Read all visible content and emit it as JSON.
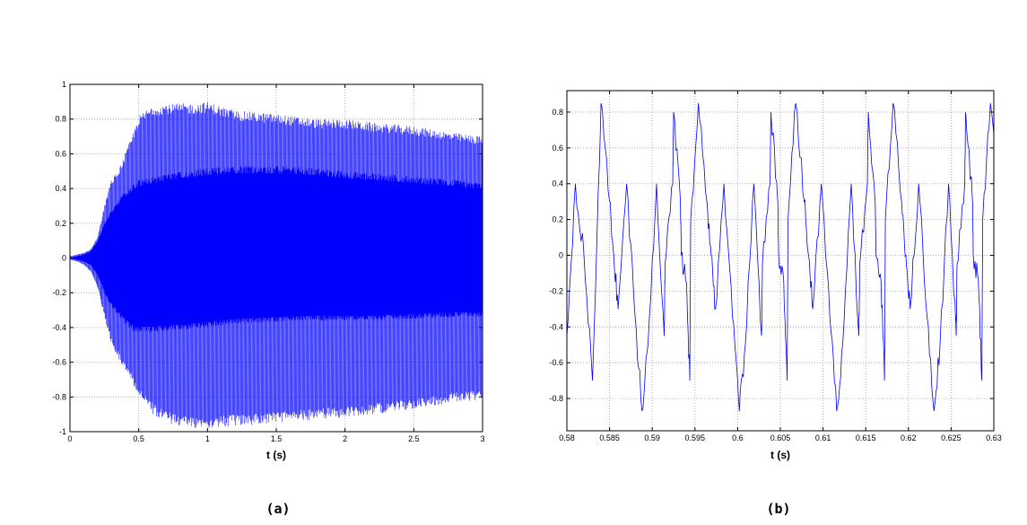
{
  "chart_data": [
    {
      "type": "line",
      "xlabel": "t (s)",
      "caption": "(a)",
      "xlim": [
        0,
        3
      ],
      "ylim": [
        -1,
        1
      ],
      "xticks": [
        0,
        0.5,
        1,
        1.5,
        2,
        2.5,
        3
      ],
      "xtick_labels": [
        "0",
        "0.5",
        "1",
        "1.5",
        "2",
        "2.5",
        "3"
      ],
      "yticks": [
        -1,
        -0.8,
        -0.6,
        -0.4,
        -0.2,
        0,
        0.2,
        0.4,
        0.6,
        0.8,
        1
      ],
      "ytick_labels": [
        "-1",
        "-0.8",
        "-0.6",
        "-0.4",
        "-0.2",
        "0",
        "0.2",
        "0.4",
        "0.6",
        "0.8",
        "1"
      ],
      "grid": true,
      "color": "#0000ff",
      "envelope": {
        "t": [
          0,
          0.05,
          0.1,
          0.15,
          0.2,
          0.25,
          0.3,
          0.35,
          0.4,
          0.45,
          0.5,
          0.6,
          0.7,
          0.8,
          0.9,
          1.0,
          1.2,
          1.5,
          1.8,
          2.0,
          2.2,
          2.5,
          2.8,
          3.0
        ],
        "peak_max": [
          0.01,
          0.02,
          0.03,
          0.05,
          0.12,
          0.3,
          0.45,
          0.5,
          0.6,
          0.7,
          0.82,
          0.88,
          0.89,
          0.89,
          0.89,
          0.9,
          0.85,
          0.83,
          0.8,
          0.8,
          0.78,
          0.76,
          0.72,
          0.7
        ],
        "peak_min": [
          -0.01,
          -0.02,
          -0.04,
          -0.08,
          -0.18,
          -0.35,
          -0.5,
          -0.58,
          -0.65,
          -0.72,
          -0.8,
          -0.9,
          -0.95,
          -0.97,
          -0.98,
          -0.98,
          -0.97,
          -0.95,
          -0.93,
          -0.92,
          -0.9,
          -0.87,
          -0.83,
          -0.82
        ],
        "dense_max": [
          0.0,
          0.01,
          0.02,
          0.04,
          0.1,
          0.2,
          0.28,
          0.33,
          0.38,
          0.42,
          0.45,
          0.47,
          0.48,
          0.5,
          0.51,
          0.52,
          0.53,
          0.53,
          0.52,
          0.5,
          0.49,
          0.47,
          0.45,
          0.43
        ],
        "dense_min": [
          0.0,
          -0.01,
          -0.02,
          -0.04,
          -0.1,
          -0.2,
          -0.28,
          -0.33,
          -0.38,
          -0.42,
          -0.43,
          -0.43,
          -0.42,
          -0.42,
          -0.41,
          -0.4,
          -0.38,
          -0.37,
          -0.36,
          -0.36,
          -0.36,
          -0.35,
          -0.34,
          -0.34
        ]
      }
    },
    {
      "type": "line",
      "xlabel": "t (s)",
      "caption": "(b)",
      "xlim": [
        0.58,
        0.63
      ],
      "ylim": [
        -0.98,
        0.92
      ],
      "xticks": [
        0.58,
        0.585,
        0.59,
        0.595,
        0.6,
        0.605,
        0.61,
        0.615,
        0.62,
        0.625,
        0.63
      ],
      "xtick_labels": [
        "0.58",
        "0.585",
        "0.59",
        "0.595",
        "0.6",
        "0.605",
        "0.61",
        "0.615",
        "0.62",
        "0.625",
        "0.63"
      ],
      "yticks": [
        -0.8,
        -0.6,
        -0.4,
        -0.2,
        0,
        0.2,
        0.4,
        0.6,
        0.8
      ],
      "ytick_labels": [
        "-0.8",
        "-0.6",
        "-0.4",
        "-0.2",
        "0",
        "0.2",
        "0.4",
        "0.6",
        "0.8"
      ],
      "grid": true,
      "color": "#0000ff",
      "period": 0.0114,
      "x": [
        0.58,
        0.581,
        0.582,
        0.583,
        0.584,
        0.585,
        0.5855,
        0.586,
        0.587,
        0.588,
        0.5888,
        0.5895,
        0.5905,
        0.5915,
        0.5925,
        0.5933,
        0.594,
        0.5945
      ],
      "y": [
        -0.45,
        0.4,
        0.0,
        -0.7,
        0.85,
        0.3,
        0.0,
        -0.3,
        0.4,
        -0.35,
        -0.87,
        -0.5,
        0.4,
        -0.05,
        0.8,
        0.3,
        -0.15,
        0.2
      ]
    }
  ]
}
